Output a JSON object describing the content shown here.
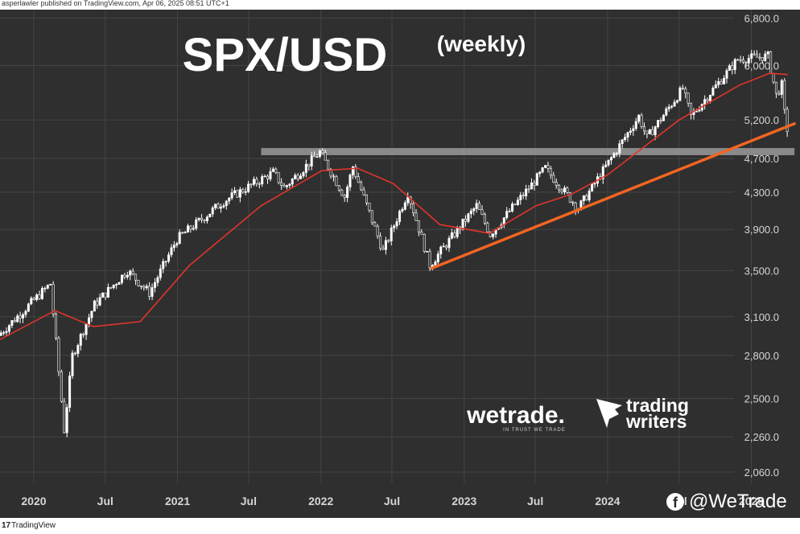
{
  "header": {
    "text": "asperlawler published on TradingView.com, Apr 06, 2025 08:51 UTC+1"
  },
  "footer": {
    "brand": "TradingView",
    "logo_text": "17"
  },
  "social": {
    "handle": "@WeTrade",
    "icon": "facebook-icon"
  },
  "watermarks": {
    "wetrade": "wetrade.",
    "wetrade_tagline": "IN TRUST WE TRADE",
    "trading_writers_1": "trading",
    "trading_writers_2": "writers"
  },
  "colors": {
    "background": "#2f2f2f",
    "grid": "#444444",
    "candle": "#ffffff",
    "ma_line": "#e0352b",
    "trendline": "#f26522",
    "resistance_band": "#8a8a8a",
    "axis_text": "#d6d6d6"
  },
  "chart_data": {
    "type": "candlestick",
    "title": "SPX/USD",
    "subtitle": "(weekly)",
    "y_scale": "log",
    "ylim": [
      2000,
      6950
    ],
    "y_ticks": [
      6800,
      6000,
      5200,
      4700,
      4300,
      3900,
      3500,
      3100,
      2800,
      2500,
      2260,
      2060
    ],
    "y_tick_labels": [
      "6,800.0",
      "6,000.0",
      "5,200.0",
      "4,700.0",
      "4,300.0",
      "3,900.0",
      "3,500.0",
      "3,100.0",
      "2,800.0",
      "2,500.0",
      "2,260.0",
      "2,060.0"
    ],
    "x_range": [
      "2019-10-07",
      "2025-05-05"
    ],
    "x_ticks": [
      {
        "date": "2020-01-01",
        "label": "2020"
      },
      {
        "date": "2020-07-01",
        "label": "Jul"
      },
      {
        "date": "2021-01-01",
        "label": "2021"
      },
      {
        "date": "2021-07-01",
        "label": "Jul"
      },
      {
        "date": "2022-01-01",
        "label": "2022"
      },
      {
        "date": "2022-07-01",
        "label": "Jul"
      },
      {
        "date": "2023-01-01",
        "label": "2023"
      },
      {
        "date": "2023-07-01",
        "label": "Jul"
      },
      {
        "date": "2024-01-01",
        "label": "2024"
      },
      {
        "date": "2024-07-01",
        "label": "Jul"
      },
      {
        "date": "2025-01-01",
        "label": "2025"
      }
    ],
    "price_path": [
      [
        "2019-10-07",
        2950
      ],
      [
        "2020-02-17",
        3380
      ],
      [
        "2020-03-23",
        2300
      ],
      [
        "2020-04-13",
        2800
      ],
      [
        "2020-06-08",
        3200
      ],
      [
        "2020-08-31",
        3500
      ],
      [
        "2020-10-26",
        3300
      ],
      [
        "2021-01-04",
        3800
      ],
      [
        "2021-05-03",
        4200
      ],
      [
        "2021-09-06",
        4530
      ],
      [
        "2021-10-04",
        4350
      ],
      [
        "2022-01-03",
        4780
      ],
      [
        "2022-03-07",
        4250
      ],
      [
        "2022-03-28",
        4600
      ],
      [
        "2022-06-13",
        3680
      ],
      [
        "2022-08-15",
        4300
      ],
      [
        "2022-10-10",
        3550
      ],
      [
        "2023-02-06",
        4150
      ],
      [
        "2023-03-13",
        3850
      ],
      [
        "2023-07-31",
        4580
      ],
      [
        "2023-10-23",
        4120
      ],
      [
        "2024-03-25",
        5250
      ],
      [
        "2024-04-15",
        4960
      ],
      [
        "2024-07-15",
        5650
      ],
      [
        "2024-08-05",
        5250
      ],
      [
        "2024-12-02",
        6100
      ],
      [
        "2025-02-17",
        6150
      ],
      [
        "2025-03-10",
        5550
      ],
      [
        "2025-03-24",
        5700
      ],
      [
        "2025-04-04",
        5075
      ]
    ],
    "moving_average": [
      [
        "2019-10-07",
        2920
      ],
      [
        "2020-02-24",
        3150
      ],
      [
        "2020-06-01",
        3020
      ],
      [
        "2020-09-28",
        3060
      ],
      [
        "2021-02-01",
        3550
      ],
      [
        "2021-08-02",
        4150
      ],
      [
        "2022-01-03",
        4550
      ],
      [
        "2022-04-04",
        4580
      ],
      [
        "2022-07-04",
        4400
      ],
      [
        "2022-10-31",
        3950
      ],
      [
        "2023-03-06",
        3860
      ],
      [
        "2023-07-03",
        4150
      ],
      [
        "2023-10-02",
        4280
      ],
      [
        "2024-01-01",
        4500
      ],
      [
        "2024-07-01",
        5200
      ],
      [
        "2024-12-02",
        5700
      ],
      [
        "2025-02-17",
        5880
      ],
      [
        "2025-04-04",
        5860
      ]
    ],
    "annotations": [
      {
        "type": "trendline",
        "from": [
          "2022-10-10",
          3520
        ],
        "to": [
          "2025-04-21",
          5150
        ]
      },
      {
        "type": "horizontal_band",
        "from_date": "2021-08-02",
        "to_date": "2025-04-21",
        "low": 4740,
        "high": 4830
      }
    ]
  }
}
